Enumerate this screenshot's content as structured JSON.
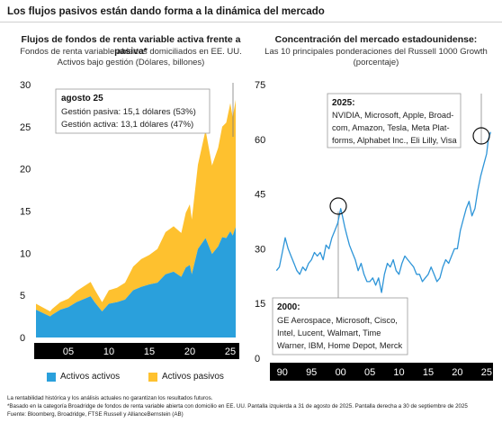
{
  "page_title": "Los flujos pasivos están dando forma a la dinámica del mercado",
  "left": {
    "title": "Flujos de fondos de renta variable activa frente a pasiva*",
    "subtitle_line1": "Fondos de renta variable abiertos domiciliados en EE. UU.",
    "subtitle_line2": "Activos bajo gestión (Dólares, billones)",
    "annotation": {
      "heading": "agosto 25",
      "line1": "Gestión pasiva: 15,1 dólares (53%)",
      "line2": "Gestión activa: 13,1 dólares (47%)"
    },
    "legend": {
      "active": "Activos activos",
      "passive": "Activos pasivos"
    }
  },
  "right": {
    "title": "Concentración del mercado estadounidense:",
    "subtitle_line1": "Las 10 principales ponderaciones del Russell 1000 Growth",
    "subtitle_line2": "(porcentaje)",
    "box_2025": {
      "heading": "2025:",
      "lines": [
        "NVIDIA, Microsoft, Apple, Broad-",
        "com, Amazon, Tesla, Meta Plat-",
        "forms, Alphabet Inc., Eli Lilly, Visa"
      ]
    },
    "box_2000": {
      "heading": "2000:",
      "lines": [
        "GE Aerospace, Microsoft, Cisco,",
        "Intel, Lucent, Walmart, Time",
        "Warner, IBM, Home Depot, Merck"
      ]
    }
  },
  "colors": {
    "active": "#2aa0dc",
    "passive": "#fec12f",
    "line": "#2e95d8",
    "axis_band": "#000000"
  },
  "chart_data": [
    {
      "type": "area",
      "title": "Flujos de fondos de renta variable activa frente a pasiva*",
      "ylabel": "Activos bajo gestión (Dólares, billones)",
      "xlabel": "",
      "ylim": [
        0,
        30
      ],
      "yticks": [
        0,
        5,
        10,
        15,
        20,
        25,
        30
      ],
      "xticks": [
        "05",
        "10",
        "15",
        "20",
        "25"
      ],
      "xlim": [
        2001.0,
        2025.67
      ],
      "grid": false,
      "legend_position": "bottom",
      "x": [
        2001.0,
        2002.75,
        2003.0,
        2004.0,
        2005.0,
        2006.0,
        2007.75,
        2008.25,
        2009.17,
        2010.0,
        2011.0,
        2012.0,
        2013.0,
        2014.0,
        2015.0,
        2016.0,
        2017.0,
        2018.0,
        2018.95,
        2019.5,
        2020.0,
        2020.25,
        2021.0,
        2021.95,
        2022.75,
        2023.5,
        2024.0,
        2024.5,
        2025.0,
        2025.3,
        2025.67
      ],
      "series": [
        {
          "name": "Activos activos",
          "values": [
            3.3,
            2.5,
            2.7,
            3.3,
            3.6,
            4.2,
            4.9,
            4.2,
            3.1,
            4.0,
            4.2,
            4.5,
            5.6,
            6.0,
            6.3,
            6.5,
            7.5,
            7.8,
            7.2,
            8.3,
            8.6,
            7.5,
            10.5,
            11.8,
            9.9,
            10.8,
            11.9,
            11.8,
            12.6,
            12.1,
            13.1
          ]
        },
        {
          "name": "Activos pasivos",
          "values": [
            0.7,
            0.6,
            0.7,
            0.9,
            1.0,
            1.3,
            1.7,
            1.5,
            1.1,
            1.6,
            1.7,
            2.0,
            2.8,
            3.3,
            3.5,
            4.0,
            5.0,
            5.4,
            5.2,
            6.5,
            7.2,
            6.5,
            10.0,
            12.8,
            10.5,
            11.7,
            13.1,
            13.7,
            15.2,
            14.0,
            15.1
          ]
        }
      ]
    },
    {
      "type": "line",
      "title": "Concentración del mercado estadounidense:",
      "ylabel": "porcentaje",
      "xlabel": "",
      "ylim": [
        0,
        75
      ],
      "yticks": [
        0,
        15,
        30,
        45,
        60,
        75
      ],
      "xticks": [
        "90",
        "95",
        "00",
        "05",
        "10",
        "15",
        "20",
        "25"
      ],
      "xlim": [
        1988.8,
        2026.1
      ],
      "grid": false,
      "series": [
        {
          "name": "Las 10 principales ponderaciones del Russell 1000 Growth",
          "x": [
            1989.0,
            1989.5,
            1990.0,
            1990.5,
            1991.0,
            1991.5,
            1992.0,
            1992.5,
            1993.0,
            1993.5,
            1994.0,
            1994.5,
            1995.0,
            1995.5,
            1996.0,
            1996.5,
            1997.0,
            1997.5,
            1998.0,
            1998.5,
            1999.0,
            1999.5,
            2000.0,
            2000.3,
            2000.7,
            2001.0,
            2001.5,
            2002.0,
            2002.5,
            2003.0,
            2003.5,
            2004.0,
            2004.5,
            2005.0,
            2005.5,
            2006.0,
            2006.5,
            2007.0,
            2007.5,
            2008.0,
            2008.5,
            2009.0,
            2009.5,
            2010.0,
            2010.5,
            2011.0,
            2011.5,
            2012.0,
            2012.5,
            2013.0,
            2013.5,
            2014.0,
            2014.5,
            2015.0,
            2015.5,
            2016.0,
            2016.5,
            2017.0,
            2017.5,
            2018.0,
            2018.5,
            2019.0,
            2019.5,
            2020.0,
            2020.5,
            2021.0,
            2021.5,
            2022.0,
            2022.5,
            2023.0,
            2023.5,
            2024.0,
            2024.5,
            2025.0,
            2025.3,
            2025.5,
            2025.7
          ],
          "values": [
            24,
            25,
            29,
            33,
            30,
            28,
            26,
            24,
            23,
            25,
            24,
            26,
            27,
            29,
            28,
            29,
            27,
            31,
            30,
            33,
            35,
            37,
            41,
            39,
            36,
            34,
            31,
            29,
            27,
            24,
            26,
            23,
            21,
            21,
            22,
            20,
            22,
            18,
            23,
            26,
            25,
            27,
            24,
            23,
            26,
            28,
            27,
            26,
            25,
            23,
            23,
            21,
            22,
            23,
            25,
            23,
            21,
            22,
            25,
            27,
            26,
            28,
            30,
            30,
            35,
            38,
            41,
            43,
            39,
            41,
            46,
            50,
            53,
            56,
            60,
            61,
            62
          ]
        }
      ]
    }
  ],
  "footnotes": [
    "La rentabilidad histórica y los análisis actuales no garantizan los resultados futuros.",
    "*Basado en la categoría Broadridge de fondos de renta variable abierta con domicilio en EE. UU. Pantalla izquierda a 31 de agosto de 2025. Pantalla derecha a 30 de septiembre de 2025",
    "Fuente: Bloomberg, Broadridge, FTSE Russell y AllianceBernstein (AB)"
  ]
}
